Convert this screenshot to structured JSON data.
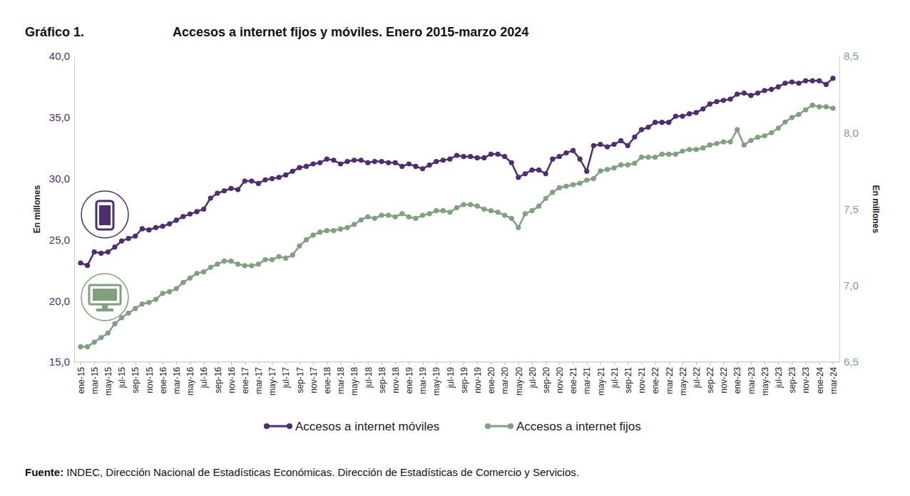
{
  "chart_data": {
    "type": "line",
    "figure_label": "Gráfico 1.",
    "title": "Accesos a internet fijos y móviles. Enero 2015-marzo 2024",
    "source": "Fuente: INDEC, Dirección Nacional de Estadísticas Económicas. Dirección de Estadísticas de Comercio y Servicios.",
    "y_label": "En millones",
    "y2_label": "En millones",
    "categories": [
      "ene-15",
      null,
      "mar-15",
      null,
      "may-15",
      null,
      "jul-15",
      null,
      "sep-15",
      null,
      "nov-15",
      null,
      "ene-16",
      null,
      "mar-16",
      null,
      "may-16",
      null,
      "jul-16",
      null,
      "sep-16",
      null,
      "nov-16",
      null,
      "ene-17",
      null,
      "mar-17",
      null,
      "may-17",
      null,
      "jul-17",
      null,
      "sep-17",
      null,
      "nov-17",
      null,
      "ene-18",
      null,
      "mar-18",
      null,
      "may-18",
      null,
      "jul-18",
      null,
      "sep-18",
      null,
      "nov-18",
      null,
      "ene-19",
      null,
      "mar-19",
      null,
      "may-19",
      null,
      "jul-19",
      null,
      "sep-19",
      null,
      "nov-19",
      null,
      "ene-20",
      null,
      "mar-20",
      null,
      "may-20",
      null,
      "jul-20",
      null,
      "sep-20",
      null,
      "nov-20",
      null,
      "ene-21",
      null,
      "mar-21",
      null,
      "may-21",
      null,
      "jul-21",
      null,
      "sep-21",
      null,
      "nov-21",
      null,
      "ene-22",
      null,
      "mar-22",
      null,
      "may-22",
      null,
      "jul-22",
      null,
      "sep-22",
      null,
      "nov-22",
      null,
      "ene-23",
      null,
      "mar-23",
      null,
      "may-23",
      null,
      "jul-23",
      null,
      "sep-23",
      null,
      "nov-23",
      null,
      "ene-24",
      null,
      "mar-24"
    ],
    "series": [
      {
        "name": "Accesos a internet móviles",
        "color": "#4f2d73",
        "marker": "circle",
        "values": [
          23.1,
          22.9,
          24.0,
          23.9,
          24.0,
          24.4,
          24.9,
          25.1,
          25.3,
          25.9,
          25.8,
          26.0,
          26.1,
          26.3,
          26.6,
          26.9,
          27.1,
          27.3,
          27.5,
          28.4,
          28.8,
          29.0,
          29.2,
          29.1,
          29.8,
          29.8,
          29.6,
          29.9,
          30.0,
          30.1,
          30.3,
          30.6,
          30.9,
          31.0,
          31.2,
          31.3,
          31.6,
          31.5,
          31.2,
          31.4,
          31.5,
          31.5,
          31.3,
          31.4,
          31.4,
          31.3,
          31.3,
          31.0,
          31.2,
          31.0,
          30.8,
          31.1,
          31.4,
          31.5,
          31.6,
          31.9,
          31.8,
          31.8,
          31.7,
          31.7,
          32.0,
          32.0,
          31.8,
          31.3,
          30.1,
          30.4,
          30.7,
          30.7,
          30.4,
          31.6,
          31.8,
          32.1,
          32.3,
          31.6,
          30.6,
          32.7,
          32.8,
          32.6,
          32.8,
          33.1,
          32.7,
          33.4,
          34.0,
          34.2,
          34.6,
          34.6,
          34.6,
          35.1,
          35.1,
          35.3,
          35.4,
          35.7,
          36.1,
          36.3,
          36.4,
          36.5,
          36.9,
          37.0,
          36.8,
          37.0,
          37.2,
          37.3,
          37.5,
          37.8,
          37.9,
          37.8,
          38.0,
          38.0,
          38.0,
          37.7,
          38.2
        ]
      },
      {
        "name": "Accesos a internet fijos",
        "color": "#7fa27e",
        "marker": "circle",
        "axis": "y2",
        "values": [
          6.6,
          6.6,
          6.63,
          6.66,
          6.69,
          6.75,
          6.79,
          6.82,
          6.85,
          6.88,
          6.89,
          6.91,
          6.95,
          6.96,
          6.98,
          7.02,
          7.05,
          7.08,
          7.09,
          7.12,
          7.14,
          7.16,
          7.16,
          7.14,
          7.13,
          7.13,
          7.14,
          7.17,
          7.17,
          7.19,
          7.18,
          7.2,
          7.26,
          7.3,
          7.33,
          7.35,
          7.36,
          7.36,
          7.37,
          7.38,
          7.4,
          7.43,
          7.45,
          7.44,
          7.46,
          7.46,
          7.45,
          7.47,
          7.45,
          7.44,
          7.46,
          7.47,
          7.49,
          7.49,
          7.48,
          7.51,
          7.53,
          7.53,
          7.52,
          7.5,
          7.49,
          7.48,
          7.46,
          7.44,
          7.38,
          7.47,
          7.49,
          7.52,
          7.57,
          7.61,
          7.64,
          7.65,
          7.66,
          7.67,
          7.69,
          7.7,
          7.75,
          7.76,
          7.77,
          7.79,
          7.79,
          7.8,
          7.84,
          7.84,
          7.84,
          7.86,
          7.86,
          7.86,
          7.88,
          7.89,
          7.89,
          7.9,
          7.92,
          7.93,
          7.94,
          7.94,
          8.02,
          7.92,
          7.95,
          7.97,
          7.98,
          8.0,
          8.03,
          8.07,
          8.1,
          8.12,
          8.15,
          8.18,
          8.17,
          8.17,
          8.16
        ]
      }
    ],
    "ylim": [
      15,
      40
    ],
    "yticks": [
      {
        "value": 15,
        "label": "15,0"
      },
      {
        "value": 20,
        "label": "20,0"
      },
      {
        "value": 25,
        "label": "25,0"
      },
      {
        "value": 30,
        "label": "30,0"
      },
      {
        "value": 35,
        "label": "35,0"
      },
      {
        "value": 40,
        "label": "40,0"
      }
    ],
    "y2lim": [
      6.5,
      8.5
    ],
    "y2ticks": [
      {
        "value": 6.5,
        "label": "6,5"
      },
      {
        "value": 7,
        "label": "7,0"
      },
      {
        "value": 7.5,
        "label": "7,5"
      },
      {
        "value": 8,
        "label": "8,0"
      },
      {
        "value": 8.5,
        "label": "8,5"
      }
    ],
    "grid": false,
    "legend": "bottom"
  }
}
